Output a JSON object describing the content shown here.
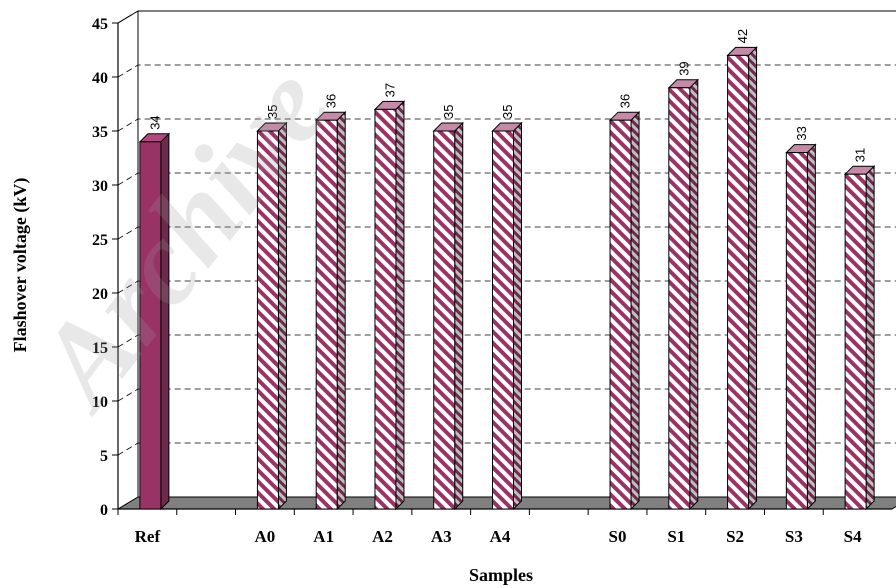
{
  "chart_data": {
    "type": "bar",
    "categories": [
      "Ref",
      "",
      "A0",
      "A1",
      "A2",
      "A3",
      "A4",
      "",
      "S0",
      "S1",
      "S2",
      "S3",
      "S4"
    ],
    "values": [
      34,
      null,
      35,
      36,
      37,
      35,
      35,
      null,
      36,
      39,
      42,
      33,
      31
    ],
    "data_labels": [
      "34",
      "",
      "35",
      "36",
      "37",
      "35",
      "35",
      "",
      "36",
      "39",
      "42",
      "33",
      "31"
    ],
    "xlabel": "Samples",
    "ylabel": "Flashover voltage (kV)",
    "ylim": [
      0,
      45
    ],
    "yticks": [
      "0",
      "5",
      "10",
      "15",
      "20",
      "25",
      "30",
      "35",
      "40",
      "45"
    ],
    "grid": true,
    "style": "3d",
    "colors": {
      "ref_fill": "#993366",
      "hatch_stripe": "#993366",
      "hatch_background": "#ffffff",
      "floor": "#808080",
      "wall": "#ffffff"
    },
    "watermark": "Archive"
  }
}
